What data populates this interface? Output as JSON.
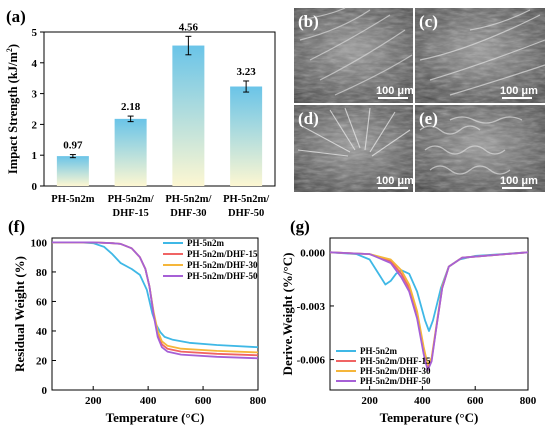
{
  "panels": {
    "a": "(a)",
    "b": "(b)",
    "c": "(c)",
    "d": "(d)",
    "e": "(e)",
    "f": "(f)",
    "g": "(g)"
  },
  "sem": {
    "scale_label": "100 μm"
  },
  "colors": {
    "cyan": "#3fb8e6",
    "red": "#f06464",
    "orange": "#f5b63a",
    "purple": "#a660d6",
    "bar_top": "#6ac4e8",
    "bar_bottom": "#fdf7d2"
  },
  "chart_data": [
    {
      "id": "a",
      "type": "bar",
      "ylabel": "Impact Strength (kJ/m²)",
      "ylabel_main": "Impact Strength (kJ/m",
      "ylabel_sup": "2",
      "ylabel_end": ")",
      "categories": [
        [
          "PH-5n2m"
        ],
        [
          "PH-5n2m/",
          "DHF-15"
        ],
        [
          "PH-5n2m/",
          "DHF-30"
        ],
        [
          "PH-5n2m/",
          "DHF-50"
        ]
      ],
      "values": [
        0.97,
        2.18,
        4.56,
        3.23
      ],
      "errors": [
        0.05,
        0.09,
        0.3,
        0.18
      ],
      "data_labels": [
        "0.97",
        "2.18",
        "4.56",
        "3.23"
      ],
      "ylim": [
        0,
        5
      ],
      "yticks": [
        0,
        1,
        2,
        3,
        4,
        5
      ]
    },
    {
      "id": "f",
      "type": "line",
      "xlabel": "Temperature (°C)",
      "ylabel": "Residual Weight (%)",
      "xlim": [
        50,
        800
      ],
      "ylim": [
        0,
        103
      ],
      "xticks": [
        200,
        400,
        600,
        800
      ],
      "yticks": [
        0,
        20,
        40,
        60,
        80,
        100
      ],
      "legend_position": "top-right",
      "series": [
        {
          "name": "PH-5n2m",
          "color_key": "cyan",
          "points": [
            [
              50,
              100
            ],
            [
              150,
              100
            ],
            [
              200,
              99.5
            ],
            [
              240,
              97
            ],
            [
              270,
              92
            ],
            [
              300,
              86
            ],
            [
              340,
              82
            ],
            [
              370,
              78
            ],
            [
              395,
              68
            ],
            [
              415,
              52
            ],
            [
              430,
              44
            ],
            [
              445,
              39
            ],
            [
              460,
              36
            ],
            [
              490,
              34
            ],
            [
              550,
              32
            ],
            [
              650,
              30.5
            ],
            [
              800,
              29
            ]
          ]
        },
        {
          "name": "PH-5n2m/DHF-15",
          "color_key": "red",
          "points": [
            [
              50,
              100
            ],
            [
              200,
              100
            ],
            [
              270,
              99.5
            ],
            [
              300,
              99
            ],
            [
              340,
              96
            ],
            [
              370,
              90
            ],
            [
              390,
              82
            ],
            [
              405,
              70
            ],
            [
              420,
              52
            ],
            [
              435,
              38
            ],
            [
              450,
              31
            ],
            [
              470,
              28
            ],
            [
              520,
              26
            ],
            [
              650,
              24.5
            ],
            [
              800,
              23.5
            ]
          ]
        },
        {
          "name": "PH-5n2m/DHF-30",
          "color_key": "orange",
          "points": [
            [
              50,
              100
            ],
            [
              200,
              100
            ],
            [
              270,
              99.5
            ],
            [
              300,
              99
            ],
            [
              340,
              96
            ],
            [
              370,
              90
            ],
            [
              390,
              82
            ],
            [
              405,
              70
            ],
            [
              420,
              53
            ],
            [
              435,
              40
            ],
            [
              450,
              33
            ],
            [
              470,
              30
            ],
            [
              520,
              28
            ],
            [
              650,
              26.5
            ],
            [
              800,
              25.5
            ]
          ]
        },
        {
          "name": "PH-5n2m/DHF-50",
          "color_key": "purple",
          "points": [
            [
              50,
              100
            ],
            [
              200,
              100
            ],
            [
              270,
              99.5
            ],
            [
              300,
              99
            ],
            [
              340,
              96
            ],
            [
              370,
              90
            ],
            [
              390,
              82
            ],
            [
              405,
              70
            ],
            [
              420,
              51
            ],
            [
              435,
              36
            ],
            [
              450,
              29
            ],
            [
              470,
              26
            ],
            [
              520,
              24
            ],
            [
              650,
              22.5
            ],
            [
              800,
              21.5
            ]
          ]
        }
      ]
    },
    {
      "id": "g",
      "type": "line",
      "xlabel": "Temperature (°C)",
      "ylabel": "Derive.Weight (%/°C)",
      "xlim": [
        50,
        800
      ],
      "ylim": [
        -0.0077,
        0.0008
      ],
      "xticks": [
        200,
        400,
        600,
        800
      ],
      "yticks": [
        0,
        -0.003,
        -0.006
      ],
      "ytick_labels": [
        "0.000",
        "-0.003",
        "-0.006"
      ],
      "legend_position": "bottom-left",
      "series": [
        {
          "name": "PH-5n2m",
          "color_key": "cyan",
          "points": [
            [
              50,
              0
            ],
            [
              150,
              -0.0001
            ],
            [
              200,
              -0.0004
            ],
            [
              230,
              -0.0011
            ],
            [
              260,
              -0.0018
            ],
            [
              280,
              -0.0016
            ],
            [
              300,
              -0.0012
            ],
            [
              320,
              -0.001
            ],
            [
              350,
              -0.0012
            ],
            [
              380,
              -0.0022
            ],
            [
              410,
              -0.0038
            ],
            [
              425,
              -0.0044
            ],
            [
              440,
              -0.0038
            ],
            [
              470,
              -0.002
            ],
            [
              500,
              -0.0008
            ],
            [
              540,
              -0.0004
            ],
            [
              600,
              -0.0002
            ],
            [
              800,
              0
            ]
          ]
        },
        {
          "name": "PH-5n2m/DHF-15",
          "color_key": "red",
          "points": [
            [
              50,
              0
            ],
            [
              200,
              -0.0001
            ],
            [
              280,
              -0.0005
            ],
            [
              320,
              -0.0012
            ],
            [
              350,
              -0.002
            ],
            [
              380,
              -0.0035
            ],
            [
              405,
              -0.0055
            ],
            [
              420,
              -0.0064
            ],
            [
              435,
              -0.006
            ],
            [
              455,
              -0.004
            ],
            [
              475,
              -0.002
            ],
            [
              500,
              -0.0008
            ],
            [
              550,
              -0.0003
            ],
            [
              800,
              0
            ]
          ]
        },
        {
          "name": "PH-5n2m/DHF-30",
          "color_key": "orange",
          "points": [
            [
              50,
              0
            ],
            [
              200,
              -0.0001
            ],
            [
              280,
              -0.0004
            ],
            [
              320,
              -0.001
            ],
            [
              350,
              -0.0018
            ],
            [
              380,
              -0.0033
            ],
            [
              405,
              -0.0053
            ],
            [
              420,
              -0.0063
            ],
            [
              435,
              -0.0059
            ],
            [
              455,
              -0.0039
            ],
            [
              475,
              -0.0019
            ],
            [
              500,
              -0.0008
            ],
            [
              550,
              -0.0003
            ],
            [
              800,
              0
            ]
          ]
        },
        {
          "name": "PH-5n2m/DHF-50",
          "color_key": "purple",
          "points": [
            [
              50,
              0
            ],
            [
              200,
              -0.0001
            ],
            [
              280,
              -0.0006
            ],
            [
              320,
              -0.0014
            ],
            [
              350,
              -0.0022
            ],
            [
              380,
              -0.0037
            ],
            [
              405,
              -0.0057
            ],
            [
              420,
              -0.0066
            ],
            [
              435,
              -0.0061
            ],
            [
              455,
              -0.004
            ],
            [
              475,
              -0.002
            ],
            [
              500,
              -0.0008
            ],
            [
              550,
              -0.0003
            ],
            [
              800,
              0
            ]
          ]
        }
      ]
    }
  ]
}
